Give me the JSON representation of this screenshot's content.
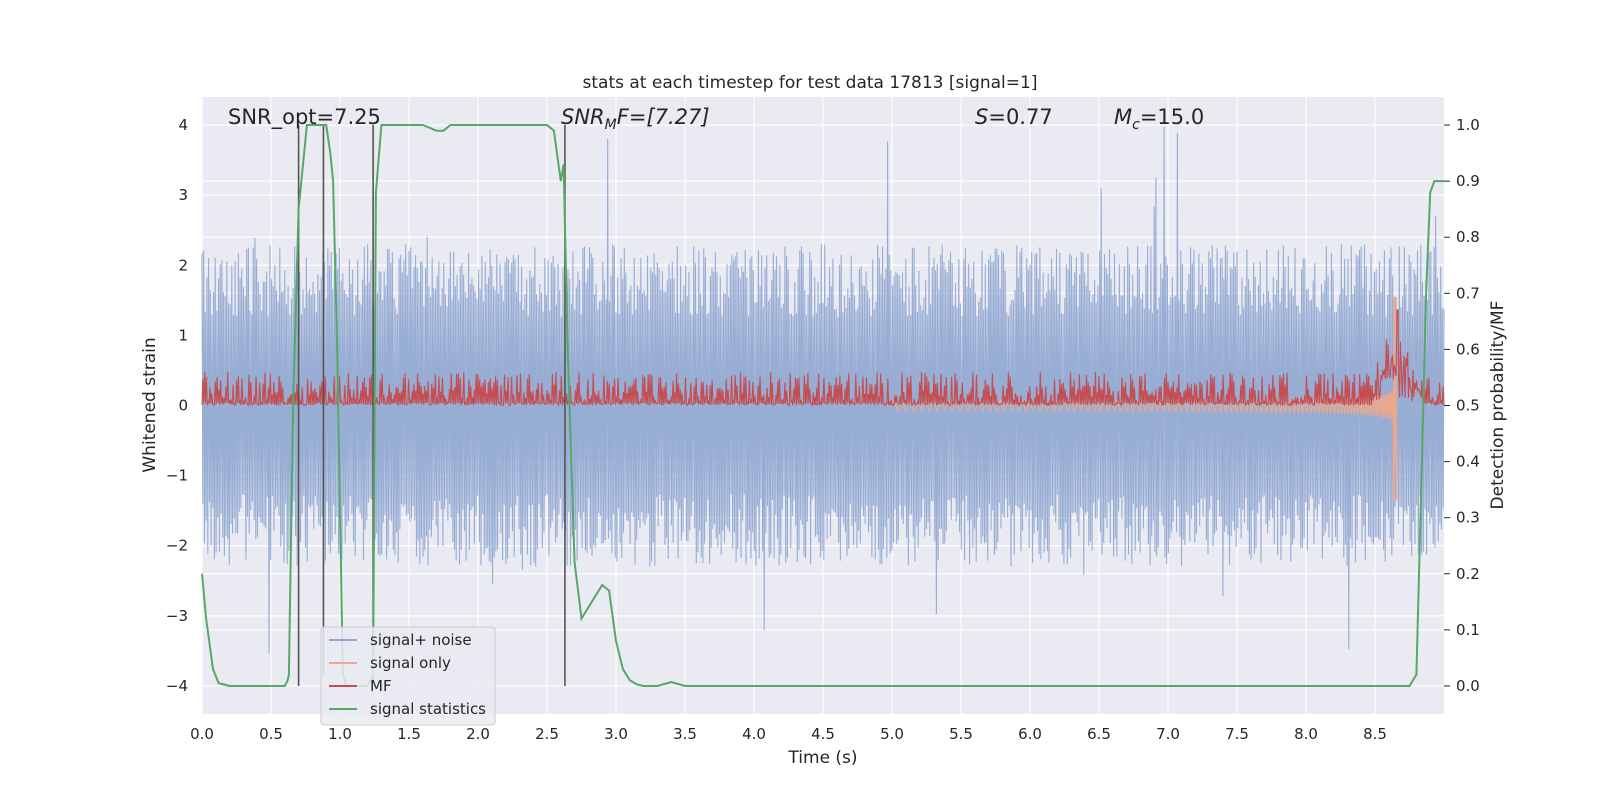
{
  "chart_data": {
    "type": "line",
    "title": "stats at each timestep for test data 17813 [signal=1]",
    "xlabel": "Time (s)",
    "ylabel_left": "Whitened strain",
    "ylabel_right": "Detection probability/MF",
    "xlim": [
      0.0,
      9.0
    ],
    "ylim_left": [
      -4.4,
      4.4
    ],
    "ylim_right": [
      -0.05,
      1.05
    ],
    "x_ticks": [
      "0.0",
      "0.5",
      "1.0",
      "1.5",
      "2.0",
      "2.5",
      "3.0",
      "3.5",
      "4.0",
      "4.5",
      "5.0",
      "5.5",
      "6.0",
      "6.5",
      "7.0",
      "7.5",
      "8.0",
      "8.5"
    ],
    "y_left_ticks": [
      "4",
      "3",
      "2",
      "1",
      "0",
      "−1",
      "−2",
      "−3",
      "−4"
    ],
    "y_right_ticks": [
      "1.0",
      "0.9",
      "0.8",
      "0.7",
      "0.6",
      "0.5",
      "0.4",
      "0.3",
      "0.2",
      "0.1",
      "0.0"
    ],
    "grid": true,
    "legend_position": "lower-left",
    "annotations": {
      "snr_opt": "SNR_opt=7.25",
      "snr_mf_sym": "SNR",
      "snr_mf_sub": "M",
      "snr_mf_rest": "F=[7.27]",
      "s_sym": "S",
      "s_val": "=0.77",
      "mc_sym": "M",
      "mc_sub": "c",
      "mc_val": "=15.0"
    },
    "series": [
      {
        "name": "signal+ noise",
        "color": "#8fa6d0",
        "axis": "left",
        "envelope": {
          "typical_abs_max": 2.3,
          "peak_abs_max": 4.0
        }
      },
      {
        "name": "signal only",
        "color": "#e8a98e",
        "axis": "left",
        "chirp_end_time": 8.66,
        "chirp_peak": 1.55,
        "chirp_trough": -1.35
      },
      {
        "name": "MF",
        "color": "#c44e52",
        "axis": "right",
        "baseline_range": [
          0.5,
          0.56
        ],
        "peak_at": [
          8.66,
          0.67
        ]
      },
      {
        "name": "signal statistics",
        "color": "#55a868",
        "axis": "right",
        "x": [
          0.0,
          0.03,
          0.08,
          0.12,
          0.2,
          0.3,
          0.5,
          0.6,
          0.62,
          0.63,
          0.66,
          0.7,
          0.76,
          0.78,
          0.82,
          0.87,
          0.9,
          0.93,
          0.95,
          0.98,
          1.02,
          1.05,
          1.1,
          1.2,
          1.24,
          1.26,
          1.3,
          1.33,
          1.5,
          1.6,
          1.7,
          1.75,
          1.8,
          1.9,
          2.0,
          2.5,
          2.55,
          2.6,
          2.62,
          2.65,
          2.7,
          2.75,
          2.8,
          2.85,
          2.9,
          2.95,
          3.0,
          3.05,
          3.1,
          3.15,
          3.2,
          3.3,
          3.4,
          3.5,
          3.6,
          8.6,
          8.75,
          8.8,
          8.84,
          8.87,
          8.9,
          8.93,
          8.96,
          9.0
        ],
        "y": [
          0.2,
          0.12,
          0.03,
          0.005,
          0.0,
          0.0,
          0.0,
          0.0,
          0.01,
          0.02,
          0.5,
          0.85,
          1.0,
          1.0,
          1.0,
          1.0,
          1.0,
          0.95,
          0.9,
          0.6,
          0.02,
          0.0,
          0.0,
          0.0,
          0.02,
          0.88,
          1.0,
          1.0,
          1.0,
          1.0,
          0.99,
          0.99,
          1.0,
          1.0,
          1.0,
          1.0,
          0.99,
          0.9,
          0.93,
          0.6,
          0.22,
          0.12,
          0.14,
          0.16,
          0.18,
          0.17,
          0.08,
          0.03,
          0.01,
          0.003,
          0.0,
          0.0,
          0.007,
          0.0,
          0.0,
          0.0,
          0.0,
          0.02,
          0.4,
          0.7,
          0.88,
          0.9,
          0.9,
          0.9
        ]
      }
    ],
    "vertical_markers": [
      {
        "x": 0.7,
        "y_top": 1.0,
        "y_bottom": 0.0
      },
      {
        "x": 0.88,
        "y_top": 1.0,
        "y_bottom": 0.02
      },
      {
        "x": 1.24,
        "y_top": 1.0,
        "y_bottom": 0.0
      },
      {
        "x": 2.63,
        "y_top": 1.0,
        "y_bottom": 0.0
      }
    ]
  }
}
